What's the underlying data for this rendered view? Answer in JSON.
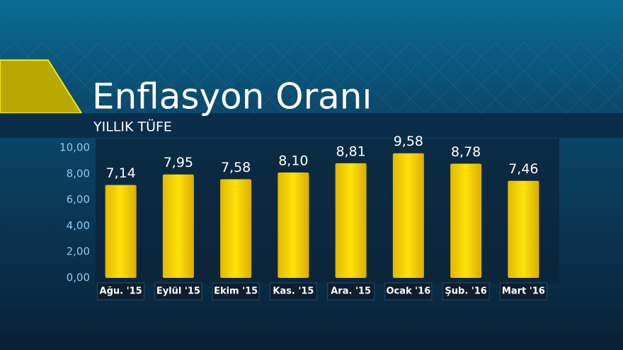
{
  "chart_data": {
    "type": "bar",
    "title": "Enflasyon Oranı",
    "subtitle": "YILLIK TÜFE",
    "categories": [
      "Ağu. '15",
      "Eylül '15",
      "Ekim '15",
      "Kas. '15",
      "Ara. '15",
      "Ocak '16",
      "Şub. '16",
      "Mart '16"
    ],
    "values": [
      7.14,
      7.95,
      7.58,
      8.1,
      8.81,
      9.58,
      8.78,
      7.46
    ],
    "value_labels": [
      "7,14",
      "7,95",
      "7,58",
      "8,10",
      "8,81",
      "9,58",
      "8,78",
      "7,46"
    ],
    "color": "#f2cf00",
    "ylim": [
      0,
      10
    ],
    "yticks": [
      {
        "value": 0,
        "label": "0,00"
      },
      {
        "value": 2,
        "label": "2,00"
      },
      {
        "value": 4,
        "label": "4,00"
      },
      {
        "value": 6,
        "label": "6,00"
      },
      {
        "value": 8,
        "label": "8,00"
      },
      {
        "value": 10,
        "label": "10,00"
      }
    ],
    "grid": false
  }
}
